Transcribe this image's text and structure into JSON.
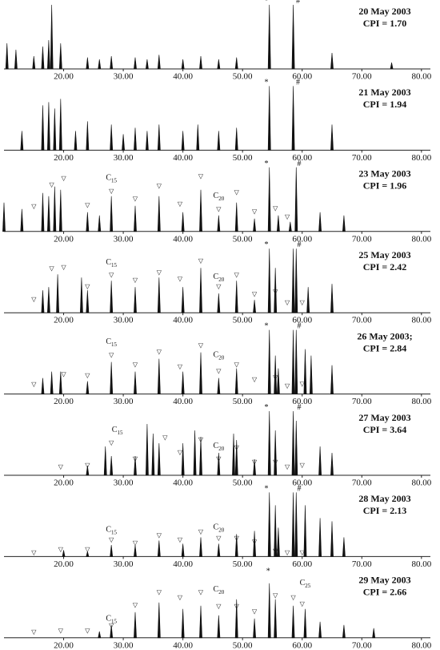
{
  "chart_data": [
    {
      "type": "spectrum",
      "title": "20 May 2003",
      "subtitle": "CPI = 1.70",
      "xlim": [
        10,
        81.5
      ],
      "ylim": [
        0,
        100
      ],
      "xticks": [
        {
          "value": 20,
          "label": "20.00"
        },
        {
          "value": 30,
          "label": "30.00"
        },
        {
          "value": 40,
          "label": "40.00"
        },
        {
          "value": 50,
          "label": "50.00"
        },
        {
          "value": 60,
          "label": "60.00"
        },
        {
          "value": 70,
          "label": "70.00"
        },
        {
          "value": 80,
          "label": "80.00"
        }
      ],
      "x": [
        10.5,
        12,
        15,
        16.5,
        17.5,
        18,
        19.5,
        24,
        26,
        28,
        32,
        34,
        36,
        40,
        43,
        46,
        49,
        54.5,
        58.5,
        65,
        75
      ],
      "values": [
        40,
        30,
        20,
        35,
        45,
        100,
        40,
        18,
        15,
        20,
        18,
        15,
        22,
        15,
        20,
        15,
        18,
        100,
        100,
        25,
        10
      ],
      "annotations": [
        {
          "text": "*",
          "x": 54,
          "y": 100
        },
        {
          "text": "#",
          "x": 59.3,
          "y": 100
        }
      ]
    },
    {
      "type": "spectrum",
      "title": "21 May 2003",
      "subtitle": "CPI = 1.94",
      "xlim": [
        10,
        81.5
      ],
      "ylim": [
        0,
        100
      ],
      "xticks": [
        {
          "value": 20,
          "label": "20.00"
        },
        {
          "value": 30,
          "label": "30.00"
        },
        {
          "value": 40,
          "label": "40.00"
        },
        {
          "value": 50,
          "label": "50.00"
        },
        {
          "value": 60,
          "label": "60.00"
        },
        {
          "value": 70,
          "label": "70.00"
        },
        {
          "value": 80,
          "label": "80.00"
        }
      ],
      "x": [
        13,
        16.5,
        17.5,
        18.5,
        19.5,
        22,
        24,
        28,
        30,
        32,
        34,
        36,
        40,
        42.5,
        46,
        49,
        54.5,
        58.5,
        65
      ],
      "values": [
        30,
        70,
        75,
        65,
        80,
        30,
        45,
        40,
        25,
        35,
        30,
        40,
        30,
        40,
        30,
        35,
        100,
        100,
        40
      ],
      "annotations": [
        {
          "text": "*",
          "x": 54,
          "y": 100
        },
        {
          "text": "#",
          "x": 59.3,
          "y": 100
        }
      ]
    },
    {
      "type": "spectrum",
      "title": "23 May 2003",
      "subtitle": "CPI = 1.96",
      "xlim": [
        10,
        81.5
      ],
      "ylim": [
        0,
        100
      ],
      "xticks": [
        {
          "value": 20,
          "label": "20.00"
        },
        {
          "value": 30,
          "label": "30.00"
        },
        {
          "value": 40,
          "label": "40.00"
        },
        {
          "value": 50,
          "label": "50.00"
        },
        {
          "value": 60,
          "label": "60.00"
        },
        {
          "value": 70,
          "label": "70.00"
        },
        {
          "value": 80,
          "label": "80.00"
        }
      ],
      "x": [
        10,
        13,
        16.5,
        17.5,
        18.5,
        19.5,
        24,
        26,
        28,
        32,
        36,
        40,
        43,
        46,
        49,
        52,
        54.5,
        56,
        58,
        59,
        63,
        67
      ],
      "values": [
        45,
        35,
        60,
        55,
        70,
        65,
        30,
        25,
        55,
        40,
        55,
        30,
        65,
        25,
        45,
        20,
        100,
        25,
        15,
        100,
        30,
        25
      ],
      "annotations": [
        {
          "text": "*",
          "x": 54,
          "y": 100
        },
        {
          "text": "#",
          "x": 59.5,
          "y": 100
        },
        {
          "text": "C",
          "sub": "15",
          "x": 28,
          "y": 78
        },
        {
          "text": "C",
          "sub": "20",
          "x": 46,
          "y": 50
        }
      ],
      "marker_symbol": "▽",
      "markers_x": [
        15,
        18,
        20,
        24,
        28,
        32,
        36,
        39.5,
        43,
        46,
        49,
        52,
        55.5,
        57.5
      ],
      "markers_y": [
        38,
        72,
        82,
        40,
        62,
        50,
        70,
        42,
        85,
        34,
        60,
        30,
        35,
        22
      ]
    },
    {
      "type": "spectrum",
      "title": "25 May 2003",
      "subtitle": "CPI = 2.42",
      "xlim": [
        10,
        81.5
      ],
      "ylim": [
        0,
        100
      ],
      "xticks": [
        {
          "value": 20,
          "label": "20.00"
        },
        {
          "value": 30,
          "label": "30.00"
        },
        {
          "value": 40,
          "label": "40.00"
        },
        {
          "value": 50,
          "label": "50.00"
        },
        {
          "value": 60,
          "label": "60.00"
        },
        {
          "value": 70,
          "label": "70.00"
        },
        {
          "value": 80,
          "label": "80.00"
        }
      ],
      "x": [
        16.5,
        17.5,
        19,
        23,
        24,
        28,
        32,
        36,
        40,
        43,
        46,
        49,
        52,
        54.5,
        55.5,
        58.5,
        59,
        61,
        65
      ],
      "values": [
        35,
        40,
        60,
        55,
        35,
        50,
        40,
        55,
        40,
        70,
        30,
        50,
        20,
        100,
        70,
        100,
        100,
        40,
        45
      ],
      "annotations": [
        {
          "text": "*",
          "x": 54,
          "y": 100
        },
        {
          "text": "#",
          "x": 59.5,
          "y": 100
        },
        {
          "text": "C",
          "sub": "15",
          "x": 28,
          "y": 73
        },
        {
          "text": "C",
          "sub": "20",
          "x": 46,
          "y": 50
        }
      ],
      "marker_symbol": "▽",
      "markers_x": [
        15,
        18,
        20,
        24,
        28,
        32,
        36,
        39.5,
        43,
        46,
        49,
        52,
        55.5,
        57.5,
        60
      ],
      "markers_y": [
        20,
        68,
        70,
        40,
        58,
        50,
        62,
        52,
        80,
        40,
        58,
        28,
        32,
        15,
        15
      ]
    },
    {
      "type": "spectrum",
      "title": "26 May 2003;",
      "subtitle": "CPI = 2.84",
      "xlim": [
        10,
        81.5
      ],
      "ylim": [
        0,
        100
      ],
      "xticks": [
        {
          "value": 20,
          "label": "20.00"
        },
        {
          "value": 30,
          "label": "30.00"
        },
        {
          "value": 40,
          "label": "40.00"
        },
        {
          "value": 50,
          "label": "50.00"
        },
        {
          "value": 60,
          "label": "60.00"
        },
        {
          "value": 70,
          "label": "70.00"
        },
        {
          "value": 80,
          "label": "80.00"
        }
      ],
      "x": [
        16.5,
        18,
        19.5,
        24,
        28,
        32,
        36,
        40,
        43,
        46,
        49,
        54.5,
        55.5,
        56,
        58.5,
        59,
        60.5,
        61.5,
        65
      ],
      "values": [
        25,
        35,
        35,
        20,
        50,
        35,
        55,
        35,
        65,
        25,
        40,
        100,
        60,
        40,
        100,
        100,
        70,
        60,
        45
      ],
      "annotations": [
        {
          "text": "*",
          "x": 54,
          "y": 100
        },
        {
          "text": "#",
          "x": 59.5,
          "y": 100
        },
        {
          "text": "C",
          "sub": "15",
          "x": 28,
          "y": 76
        },
        {
          "text": "C",
          "sub": "20",
          "x": 46,
          "y": 55
        }
      ],
      "marker_symbol": "▽",
      "markers_x": [
        15,
        20,
        24,
        28,
        32,
        36,
        39.5,
        43,
        46,
        49,
        52,
        55.5,
        57.5,
        60
      ],
      "markers_y": [
        14,
        30,
        28,
        60,
        45,
        65,
        42,
        75,
        35,
        45,
        22,
        25,
        12,
        15
      ]
    },
    {
      "type": "spectrum",
      "title": "27 May 2003",
      "subtitle": "CPI = 3.64",
      "xlim": [
        10,
        81.5
      ],
      "ylim": [
        0,
        100
      ],
      "xticks": [
        {
          "value": 20,
          "label": "20.00"
        },
        {
          "value": 30,
          "label": "30.00"
        },
        {
          "value": 40,
          "label": "40.00"
        },
        {
          "value": 50,
          "label": "50.00"
        },
        {
          "value": 60,
          "label": "60.00"
        },
        {
          "value": 70,
          "label": "70.00"
        },
        {
          "value": 80,
          "label": "80.00"
        }
      ],
      "x": [
        24,
        27,
        28,
        32,
        34,
        35,
        36,
        40,
        42,
        43,
        46,
        48.5,
        49,
        52,
        54.5,
        55.5,
        58.5,
        59,
        63,
        65
      ],
      "values": [
        15,
        45,
        30,
        30,
        80,
        65,
        50,
        50,
        70,
        60,
        35,
        65,
        55,
        25,
        100,
        70,
        100,
        85,
        45,
        35
      ],
      "annotations": [
        {
          "text": "*",
          "x": 54,
          "y": 100
        },
        {
          "text": "#",
          "x": 59.5,
          "y": 100
        },
        {
          "text": "C",
          "sub": "15",
          "x": 29,
          "y": 65
        },
        {
          "text": "C",
          "sub": "20",
          "x": 46,
          "y": 40
        }
      ],
      "marker_symbol": "▽",
      "markers_x": [
        19.5,
        24,
        28,
        32,
        37,
        39.5,
        43,
        46,
        49,
        52,
        55.5,
        57.5,
        60
      ],
      "markers_y": [
        12,
        15,
        50,
        25,
        58,
        35,
        55,
        25,
        42,
        20,
        20,
        12,
        15
      ]
    },
    {
      "type": "spectrum",
      "title": "28 May 2003",
      "subtitle": "CPI = 2.13",
      "xlim": [
        10,
        81.5
      ],
      "ylim": [
        0,
        100
      ],
      "xticks": [
        {
          "value": 20,
          "label": "20.00"
        },
        {
          "value": 30,
          "label": "30.00"
        },
        {
          "value": 40,
          "label": "40.00"
        },
        {
          "value": 50,
          "label": "50.00"
        },
        {
          "value": 60,
          "label": "60.00"
        },
        {
          "value": 70,
          "label": "70.00"
        },
        {
          "value": 80,
          "label": "80.00"
        }
      ],
      "x": [
        20,
        24,
        28,
        32,
        36,
        40,
        43,
        46,
        49,
        52,
        54.5,
        55.5,
        56,
        58.5,
        59,
        60.5,
        63,
        65,
        67
      ],
      "values": [
        10,
        8,
        18,
        18,
        25,
        20,
        30,
        20,
        35,
        40,
        100,
        80,
        45,
        100,
        100,
        80,
        60,
        55,
        30
      ],
      "annotations": [
        {
          "text": "*",
          "x": 54,
          "y": 100
        },
        {
          "text": "#",
          "x": 59.5,
          "y": 100
        },
        {
          "text": "C",
          "sub": "15",
          "x": 28,
          "y": 36
        },
        {
          "text": "C",
          "sub": "20",
          "x": 46,
          "y": 40
        }
      ],
      "marker_symbol": "▽",
      "markers_x": [
        15,
        19.5,
        24,
        28,
        32,
        36,
        39.5,
        43,
        46,
        49,
        52,
        55.5,
        57.5,
        60
      ],
      "markers_y": [
        5,
        10,
        10,
        25,
        20,
        32,
        25,
        38,
        28,
        28,
        22,
        8,
        5,
        5
      ]
    },
    {
      "type": "spectrum",
      "title": "29 May 2003",
      "subtitle": "CPI = 2.66",
      "xlim": [
        10,
        81.5
      ],
      "ylim": [
        0,
        100
      ],
      "xticks": [
        {
          "value": 20,
          "label": "20.00"
        },
        {
          "value": 30,
          "label": "30.00"
        },
        {
          "value": 40,
          "label": "40.00"
        },
        {
          "value": 50,
          "label": "50.00"
        },
        {
          "value": 60,
          "label": "60.00"
        },
        {
          "value": 70,
          "label": "70.00"
        },
        {
          "value": 80,
          "label": "80.00"
        }
      ],
      "x": [
        26,
        28,
        32,
        36,
        40,
        43,
        46,
        49,
        52,
        54.5,
        55.5,
        58.5,
        60.5,
        63,
        67,
        72
      ],
      "values": [
        10,
        20,
        40,
        55,
        45,
        50,
        35,
        60,
        30,
        85,
        60,
        50,
        45,
        25,
        20,
        15
      ],
      "annotations": [
        {
          "text": "*",
          "x": 54.3,
          "y": 98
        },
        {
          "text": "C",
          "sub": "15",
          "x": 28,
          "y": 24
        },
        {
          "text": "C",
          "sub": "20",
          "x": 46,
          "y": 70
        },
        {
          "text": "C",
          "sub": "25",
          "x": 60.5,
          "y": 80
        }
      ],
      "marker_symbol": "▽",
      "markers_x": [
        15,
        19.5,
        24,
        28,
        32,
        36,
        39.5,
        43,
        46,
        49,
        52,
        55.5,
        58.5,
        60
      ],
      "markers_y": [
        8,
        10,
        10,
        18,
        50,
        70,
        62,
        70,
        48,
        48,
        40,
        65,
        62,
        52
      ]
    }
  ]
}
